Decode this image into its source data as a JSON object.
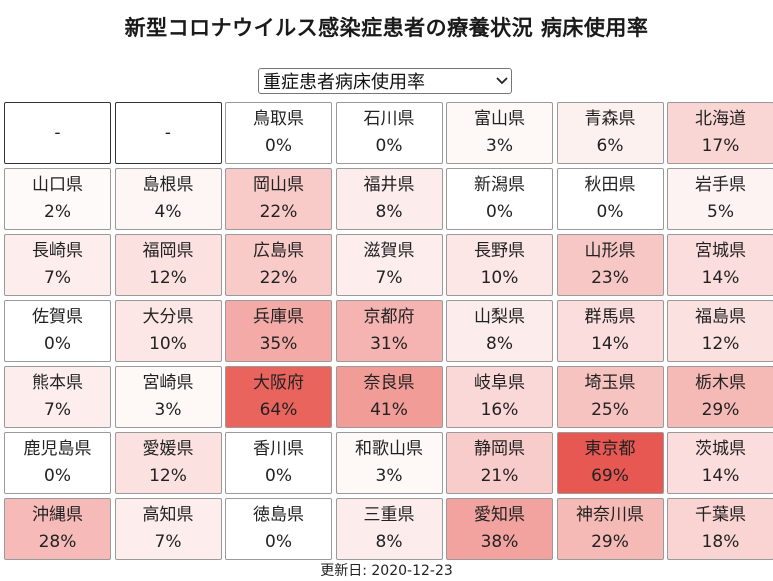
{
  "title": "新型コロナウイルス感染症患者の療養状況 病床使用率",
  "dropdown": {
    "selected": "重症患者病床使用率"
  },
  "cells": [
    {
      "name": "-",
      "value": "",
      "pct": null
    },
    {
      "name": "-",
      "value": "",
      "pct": null
    },
    {
      "name": "鳥取県",
      "value": "0%",
      "pct": 0
    },
    {
      "name": "石川県",
      "value": "0%",
      "pct": 0
    },
    {
      "name": "富山県",
      "value": "3%",
      "pct": 3
    },
    {
      "name": "青森県",
      "value": "6%",
      "pct": 6
    },
    {
      "name": "北海道",
      "value": "17%",
      "pct": 17
    },
    {
      "name": "山口県",
      "value": "2%",
      "pct": 2
    },
    {
      "name": "島根県",
      "value": "4%",
      "pct": 4
    },
    {
      "name": "岡山県",
      "value": "22%",
      "pct": 22
    },
    {
      "name": "福井県",
      "value": "8%",
      "pct": 8
    },
    {
      "name": "新潟県",
      "value": "0%",
      "pct": 0
    },
    {
      "name": "秋田県",
      "value": "0%",
      "pct": 0
    },
    {
      "name": "岩手県",
      "value": "5%",
      "pct": 5
    },
    {
      "name": "長崎県",
      "value": "7%",
      "pct": 7
    },
    {
      "name": "福岡県",
      "value": "12%",
      "pct": 12
    },
    {
      "name": "広島県",
      "value": "22%",
      "pct": 22
    },
    {
      "name": "滋賀県",
      "value": "7%",
      "pct": 7
    },
    {
      "name": "長野県",
      "value": "10%",
      "pct": 10
    },
    {
      "name": "山形県",
      "value": "23%",
      "pct": 23
    },
    {
      "name": "宮城県",
      "value": "14%",
      "pct": 14
    },
    {
      "name": "佐賀県",
      "value": "0%",
      "pct": 0
    },
    {
      "name": "大分県",
      "value": "10%",
      "pct": 10
    },
    {
      "name": "兵庫県",
      "value": "35%",
      "pct": 35
    },
    {
      "name": "京都府",
      "value": "31%",
      "pct": 31
    },
    {
      "name": "山梨県",
      "value": "8%",
      "pct": 8
    },
    {
      "name": "群馬県",
      "value": "14%",
      "pct": 14
    },
    {
      "name": "福島県",
      "value": "12%",
      "pct": 12
    },
    {
      "name": "熊本県",
      "value": "7%",
      "pct": 7
    },
    {
      "name": "宮崎県",
      "value": "3%",
      "pct": 3
    },
    {
      "name": "大阪府",
      "value": "64%",
      "pct": 64
    },
    {
      "name": "奈良県",
      "value": "41%",
      "pct": 41
    },
    {
      "name": "岐阜県",
      "value": "16%",
      "pct": 16
    },
    {
      "name": "埼玉県",
      "value": "25%",
      "pct": 25
    },
    {
      "name": "栃木県",
      "value": "29%",
      "pct": 29
    },
    {
      "name": "鹿児島県",
      "value": "0%",
      "pct": 0
    },
    {
      "name": "愛媛県",
      "value": "12%",
      "pct": 12
    },
    {
      "name": "香川県",
      "value": "0%",
      "pct": 0
    },
    {
      "name": "和歌山県",
      "value": "3%",
      "pct": 3
    },
    {
      "name": "静岡県",
      "value": "21%",
      "pct": 21
    },
    {
      "name": "東京都",
      "value": "69%",
      "pct": 69
    },
    {
      "name": "茨城県",
      "value": "14%",
      "pct": 14
    },
    {
      "name": "沖縄県",
      "value": "28%",
      "pct": 28
    },
    {
      "name": "高知県",
      "value": "7%",
      "pct": 7
    },
    {
      "name": "徳島県",
      "value": "0%",
      "pct": 0
    },
    {
      "name": "三重県",
      "value": "8%",
      "pct": 8
    },
    {
      "name": "愛知県",
      "value": "38%",
      "pct": 38
    },
    {
      "name": "神奈川県",
      "value": "29%",
      "pct": 29
    },
    {
      "name": "千葉県",
      "value": "18%",
      "pct": 18
    }
  ],
  "colors": {
    "low": "#ffffff",
    "high": "#e8564f"
  },
  "updated": "更新日: 2020-12-23"
}
